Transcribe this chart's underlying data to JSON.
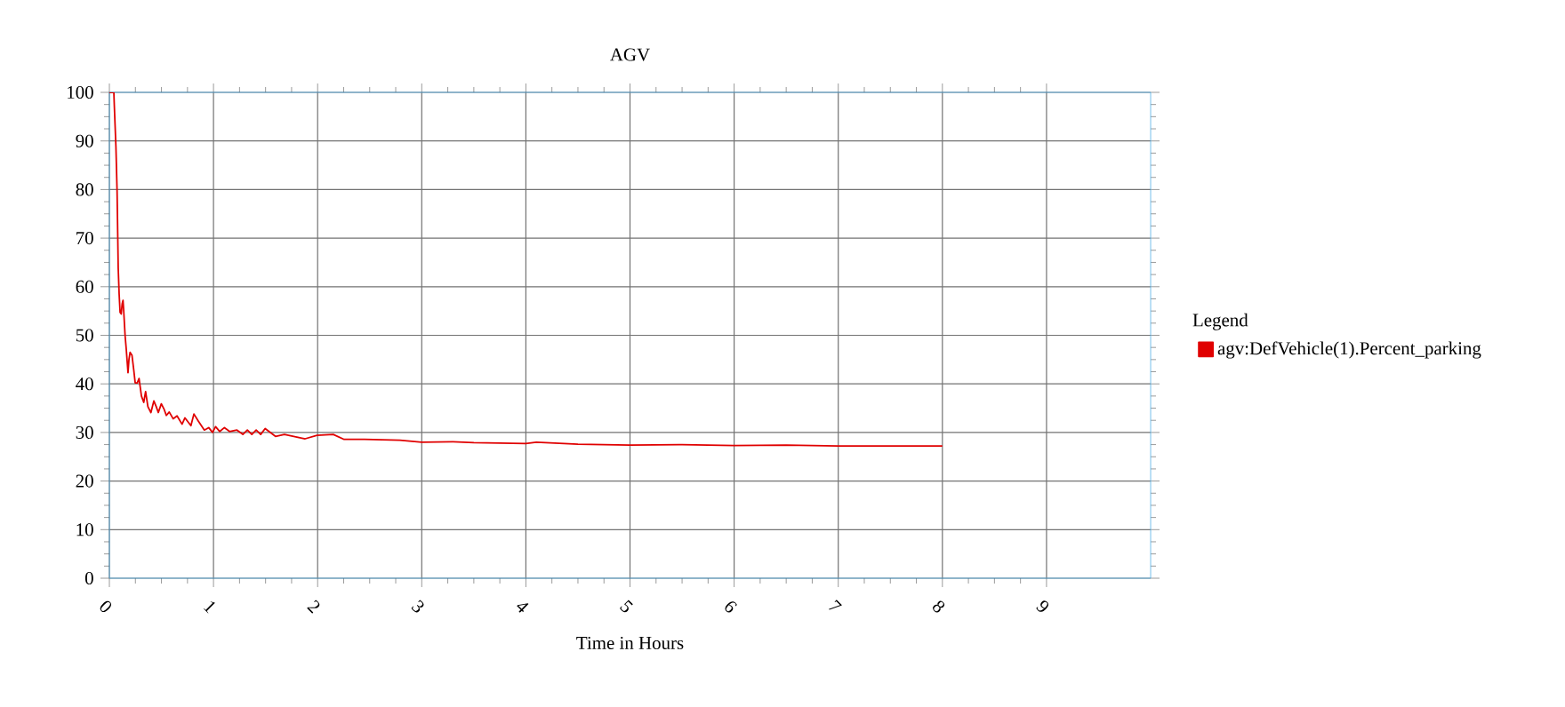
{
  "chart_data": {
    "type": "line",
    "title": "AGV",
    "xlabel": "Time in Hours",
    "legend_title": "Legend",
    "xlim": [
      0,
      10
    ],
    "ylim": [
      0,
      100
    ],
    "xticks": [
      0,
      1,
      2,
      3,
      4,
      5,
      6,
      7,
      8,
      9
    ],
    "yticks": [
      0,
      10,
      20,
      30,
      40,
      50,
      60,
      70,
      80,
      90,
      100
    ],
    "grid": true,
    "legend": "right",
    "series": [
      {
        "name": "agv:DefVehicle(1).Percent_parking",
        "color": "#e00000",
        "x": [
          0,
          0.043,
          0.047,
          0.063,
          0.074,
          0.08,
          0.085,
          0.094,
          0.103,
          0.114,
          0.123,
          0.131,
          0.137,
          0.151,
          0.162,
          0.179,
          0.188,
          0.199,
          0.217,
          0.234,
          0.248,
          0.268,
          0.285,
          0.308,
          0.33,
          0.348,
          0.37,
          0.399,
          0.427,
          0.45,
          0.47,
          0.499,
          0.527,
          0.547,
          0.575,
          0.613,
          0.65,
          0.698,
          0.726,
          0.783,
          0.812,
          0.855,
          0.912,
          0.954,
          0.991,
          1.02,
          1.06,
          1.105,
          1.154,
          1.225,
          1.282,
          1.325,
          1.368,
          1.41,
          1.453,
          1.496,
          1.595,
          1.681,
          1.88,
          1.994,
          2.15,
          2.25,
          2.45,
          2.79,
          3.0,
          3.3,
          3.5,
          4.0,
          4.1,
          4.5,
          5.0,
          5.5,
          6.0,
          6.5,
          7.0,
          7.5,
          8.0
        ],
        "values": [
          100,
          100,
          97.5,
          88.7,
          79.6,
          71.1,
          63.8,
          58.4,
          54.7,
          54.4,
          56.5,
          57.2,
          55.3,
          49.9,
          47.2,
          42.3,
          45.0,
          46.5,
          45.9,
          42.9,
          40.2,
          40.2,
          41.1,
          37.5,
          36.2,
          38.4,
          35.3,
          34.1,
          36.5,
          35.3,
          34.1,
          35.9,
          34.7,
          33.5,
          34.2,
          32.8,
          33.4,
          31.7,
          33.0,
          31.4,
          33.8,
          32.3,
          30.5,
          31.0,
          30.0,
          31.2,
          30.2,
          31.0,
          30.2,
          30.5,
          29.6,
          30.5,
          29.6,
          30.5,
          29.6,
          30.8,
          29.2,
          29.6,
          28.7,
          29.4,
          29.6,
          28.6,
          28.6,
          28.4,
          28.0,
          28.1,
          27.9,
          27.7,
          28.0,
          27.6,
          27.4,
          27.5,
          27.3,
          27.4,
          27.2,
          27.2,
          27.2
        ]
      }
    ]
  }
}
